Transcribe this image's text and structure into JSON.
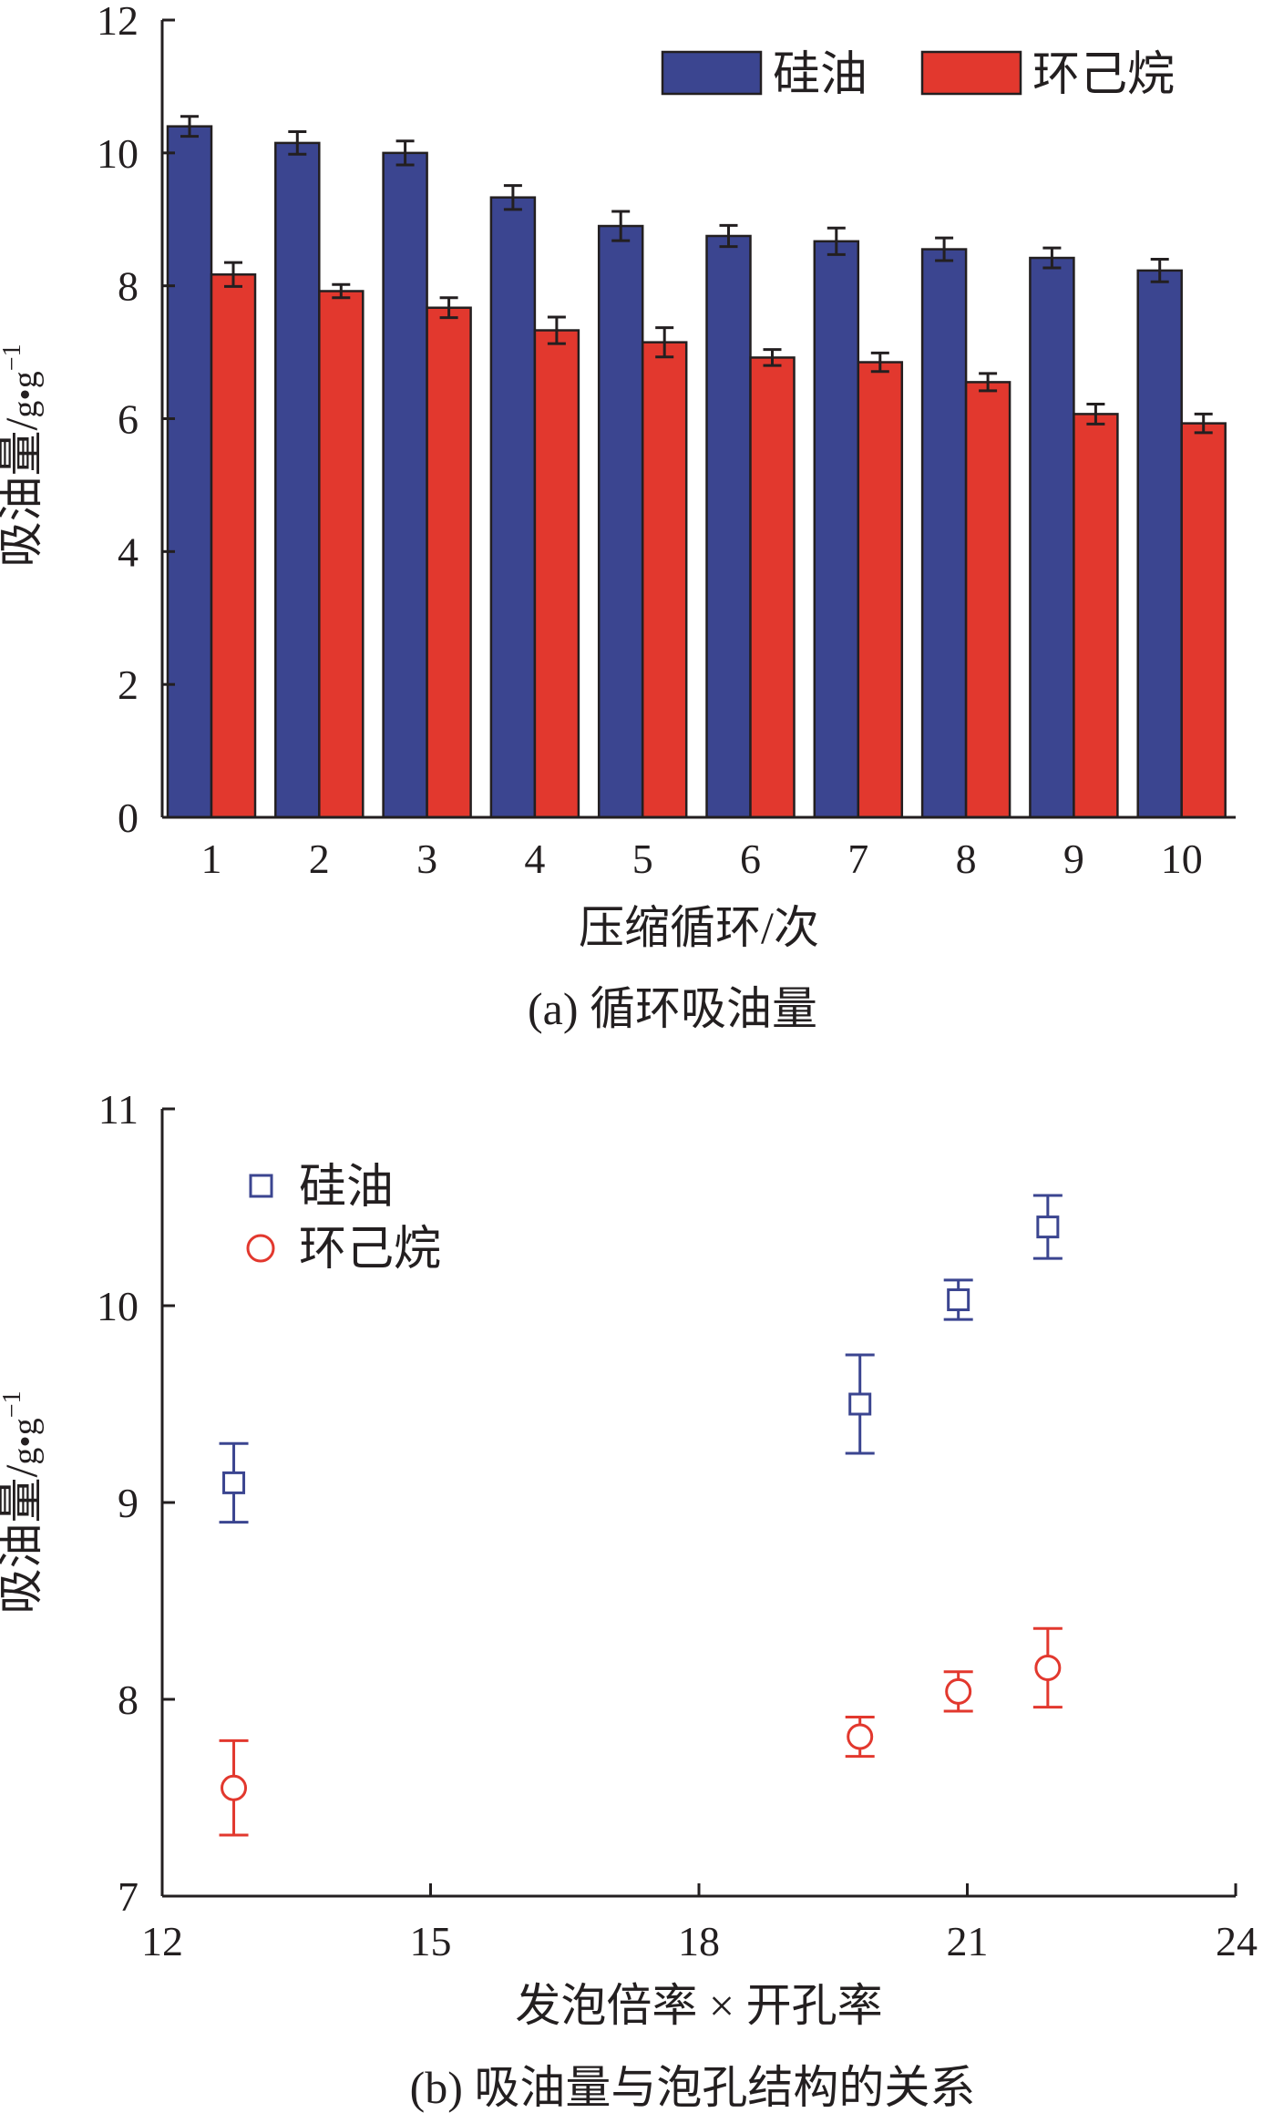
{
  "chart_data": [
    {
      "type": "bar",
      "caption": "(a) 循环吸油量",
      "xlabel": "压缩循环/次",
      "ylabel_main": "吸油量/",
      "ylabel_unit": "g•g",
      "ylabel_exp": "−1",
      "ylim": [
        0,
        12
      ],
      "yticks": [
        0,
        2,
        4,
        6,
        8,
        10,
        12
      ],
      "categories": [
        "1",
        "2",
        "3",
        "4",
        "5",
        "6",
        "7",
        "8",
        "9",
        "10"
      ],
      "legend_position": "top-right",
      "grid": false,
      "series": [
        {
          "name": "硅油",
          "color": "#3b4590",
          "values": [
            10.4,
            10.15,
            10.0,
            9.33,
            8.9,
            8.75,
            8.67,
            8.55,
            8.42,
            8.23
          ],
          "errors": [
            0.15,
            0.17,
            0.18,
            0.18,
            0.22,
            0.16,
            0.2,
            0.17,
            0.15,
            0.17
          ]
        },
        {
          "name": "环己烷",
          "color": "#e2382e",
          "values": [
            8.17,
            7.92,
            7.67,
            7.33,
            7.15,
            6.92,
            6.85,
            6.55,
            6.07,
            5.93
          ],
          "errors": [
            0.18,
            0.1,
            0.15,
            0.2,
            0.22,
            0.12,
            0.14,
            0.13,
            0.15,
            0.14
          ]
        }
      ]
    },
    {
      "type": "scatter",
      "caption": "(b) 吸油量与泡孔结构的关系",
      "xlabel": "发泡倍率 × 开孔率",
      "ylabel_main": "吸油量/",
      "ylabel_unit": "g•g",
      "ylabel_exp": "−1",
      "xlim": [
        12,
        24
      ],
      "ylim": [
        7,
        11
      ],
      "xticks": [
        12,
        15,
        18,
        21,
        24
      ],
      "yticks": [
        7,
        8,
        9,
        10,
        11
      ],
      "legend_position": "top-left",
      "grid": false,
      "series": [
        {
          "name": "硅油",
          "marker": "square",
          "color": "#3b4590",
          "x": [
            12.8,
            19.8,
            20.9,
            21.9
          ],
          "y": [
            9.1,
            9.5,
            10.03,
            10.4
          ],
          "errors": [
            0.2,
            0.25,
            0.1,
            0.16
          ]
        },
        {
          "name": "环己烷",
          "marker": "circle",
          "color": "#e2382e",
          "x": [
            12.8,
            19.8,
            20.9,
            21.9
          ],
          "y": [
            7.55,
            7.81,
            8.04,
            8.16
          ],
          "errors": [
            0.24,
            0.1,
            0.1,
            0.2
          ]
        }
      ]
    }
  ]
}
